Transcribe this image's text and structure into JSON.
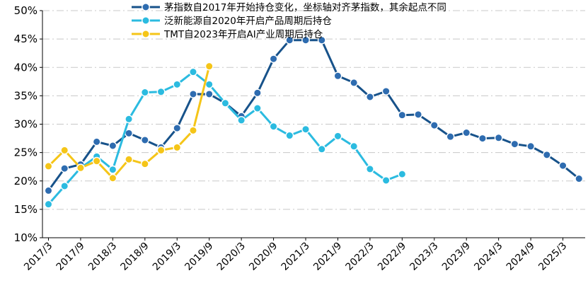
{
  "chart_data": {
    "type": "line",
    "title": "",
    "xlabel": "",
    "ylabel": "",
    "ylim": [
      10,
      50
    ],
    "y_ticks": [
      "10%",
      "15%",
      "20%",
      "25%",
      "30%",
      "35%",
      "40%",
      "45%",
      "50%"
    ],
    "x_ticks": [
      "2017/3",
      "2017/9",
      "2018/3",
      "2018/9",
      "2019/3",
      "2019/9",
      "2020/3",
      "2020/9",
      "2021/3",
      "2021/9",
      "2022/3",
      "2022/9",
      "2023/3",
      "2023/9",
      "2024/3",
      "2024/9",
      "2025/3"
    ],
    "x_step_note": "each point is one quarter starting 2017/3",
    "grid": "horizontal dash-dot",
    "legend_position": "top",
    "series": [
      {
        "name": "茅指数自2017年开始持仓变化，坐标轴对齐茅指数，其余起点不同",
        "color": "#17528a",
        "marker_fill": "#2e6cb0",
        "values": [
          18.3,
          22.2,
          22.9,
          26.9,
          26.2,
          28.4,
          27.2,
          25.9,
          29.3,
          35.3,
          35.3,
          33.7,
          31.4,
          35.5,
          41.5,
          44.8,
          44.8,
          44.8,
          38.5,
          37.3,
          34.8,
          35.8,
          31.6,
          31.7,
          29.8,
          27.8,
          28.5,
          27.5,
          27.6,
          26.5,
          26.1,
          24.6,
          22.7,
          20.4
        ]
      },
      {
        "name": "泛新能源自2020年开启产品周期后持仓",
        "color": "#2bbbe0",
        "marker_fill": "#2bbbe0",
        "values": [
          15.9,
          19.1,
          22.3,
          24.3,
          22.0,
          30.9,
          35.6,
          35.7,
          37.0,
          39.2,
          37.0,
          33.7,
          30.7,
          32.8,
          29.6,
          28.0,
          29.1,
          25.6,
          27.9,
          26.1,
          22.1,
          20.1,
          21.2
        ]
      },
      {
        "name": "TMT自2023年开启AI产业周期后持仓",
        "color": "#f5c518",
        "marker_fill": "#f5c518",
        "values": [
          22.6,
          25.4,
          22.3,
          23.5,
          20.5,
          23.8,
          23.0,
          25.4,
          25.9,
          28.9,
          40.2
        ]
      }
    ]
  }
}
